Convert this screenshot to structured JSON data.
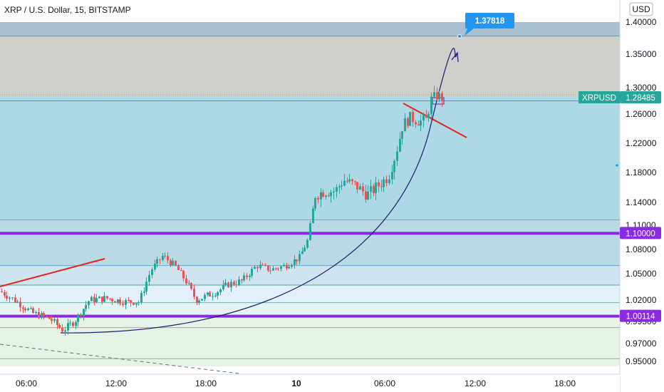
{
  "header": {
    "title": "XRP / U.S. Dollar, 15, BITSTAMP",
    "currency_button": "USD"
  },
  "chart_data": {
    "type": "candlestick",
    "title": "XRP / U.S. Dollar, 15, BITSTAMP",
    "symbol": "XRPUSD",
    "y_axis": {
      "unit": "USD",
      "ticks": [
        "1.40000",
        "1.35000",
        "1.30000",
        "1.26000",
        "1.22000",
        "1.18000",
        "1.14000",
        "1.11000",
        "1.08000",
        "1.05000",
        "1.02000",
        "0.99500",
        "0.97000",
        "0.95000"
      ]
    },
    "x_axis": {
      "ticks": [
        "06:00",
        "12:00",
        "18:00",
        "10",
        "06:00",
        "12:00",
        "18:00"
      ],
      "bold_tick": "10"
    },
    "price_tags": [
      {
        "label": "XRPUSD",
        "value": "1.28485",
        "color": "#26a69a"
      },
      {
        "label": "",
        "value": "1.10000",
        "color": "#8a2be2"
      },
      {
        "label": "",
        "value": "1.00114",
        "color": "#8a2be2"
      }
    ],
    "target_callout": {
      "value": "1.37818",
      "color": "#2196f3"
    },
    "horizontal_levels": [
      {
        "value": 1.37818,
        "color": "#7a8fa8"
      },
      {
        "value": 1.28,
        "color": "#6f86a8"
      },
      {
        "value": 1.117,
        "color": "#8aa0b8"
      },
      {
        "value": 1.1,
        "color": "#8a2be2"
      },
      {
        "value": 1.06,
        "color": "#6aa8c8"
      },
      {
        "value": 1.037,
        "color": "#4aa8a0"
      },
      {
        "value": 1.017,
        "color": "#6ab4a8"
      },
      {
        "value": 1.00114,
        "color": "#8a2be2"
      },
      {
        "value": 0.988,
        "color": "#8ab898"
      },
      {
        "value": 0.953,
        "color": "#8ab898"
      }
    ],
    "zones": [
      {
        "from": 1.4,
        "to": 1.37818,
        "color": "#a9c0d0"
      },
      {
        "from": 1.37818,
        "to": 1.287,
        "color": "#cfcfcb"
      },
      {
        "from": 1.287,
        "to": 1.117,
        "color": "#add8e6"
      },
      {
        "from": 1.117,
        "to": 1.06,
        "color": "#b9d9e4"
      },
      {
        "from": 1.06,
        "to": 1.037,
        "color": "#cfe4ee"
      },
      {
        "from": 1.037,
        "to": 1.017,
        "color": "#e3f0fb"
      },
      {
        "from": 1.017,
        "to": 1.00114,
        "color": "#e6f3f2"
      },
      {
        "from": 1.00114,
        "to": 0.94,
        "color": "#e5f2e6"
      }
    ],
    "colors": {
      "up": "#26a69a",
      "down": "#ef5350",
      "trend": "#e8211a",
      "curve": "#1f1a6e"
    }
  }
}
